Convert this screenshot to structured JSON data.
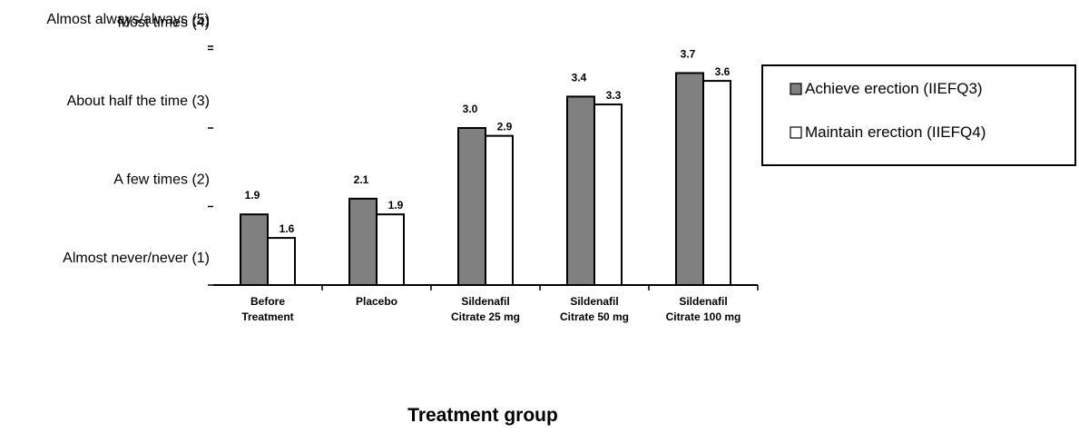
{
  "chart_data": {
    "type": "bar",
    "title": "",
    "xlabel": "Treatment group",
    "ylabel": "",
    "ylim": [
      1,
      5
    ],
    "y_tick_labels": [
      "Almost never/never (1)",
      "A few times (2)",
      "About half the time (3)",
      "Most times (4)",
      "Almost always/always (5)"
    ],
    "categories": [
      [
        "Before",
        "Treatment"
      ],
      [
        "Placebo"
      ],
      [
        "Sildenafil",
        "Citrate 25 mg"
      ],
      [
        "Sildenafil",
        "Citrate 50 mg"
      ],
      [
        "Sildenafil",
        "Citrate 100 mg"
      ]
    ],
    "series": [
      {
        "name": "Achieve erection (IIEFQ3)",
        "color": "#808080",
        "values": [
          1.9,
          2.1,
          3.0,
          3.4,
          3.7
        ],
        "labels": [
          "1.9",
          "2.1",
          "3.0",
          "3.4",
          "3.7"
        ]
      },
      {
        "name": "Maintain erection (IIEFQ4)",
        "color": "#ffffff",
        "values": [
          1.6,
          1.9,
          2.9,
          3.3,
          3.6
        ],
        "labels": [
          "1.6",
          "1.9",
          "2.9",
          "3.3",
          "3.6"
        ]
      }
    ],
    "grid": false,
    "legend": "right"
  }
}
